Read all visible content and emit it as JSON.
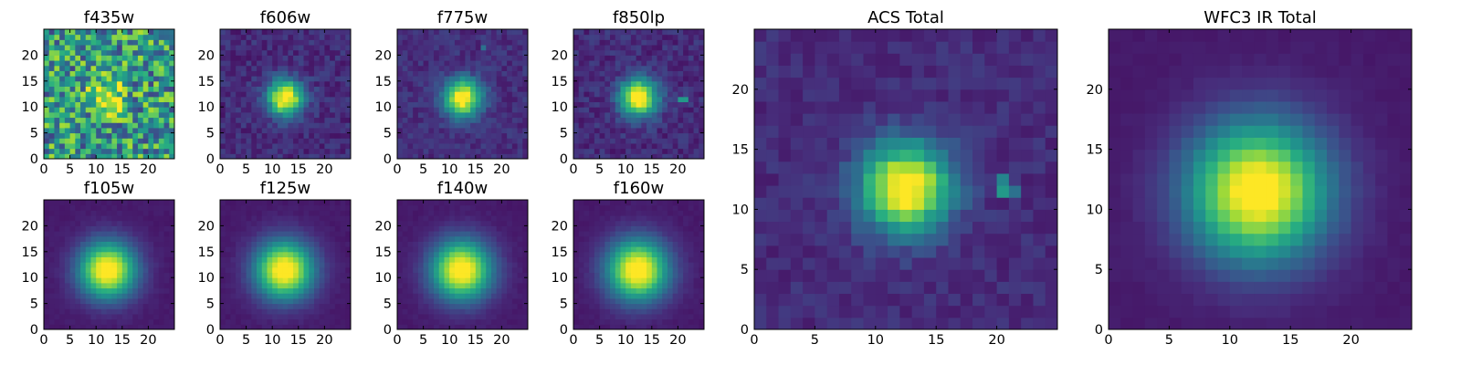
{
  "chart_data": [
    {
      "type": "heatmap",
      "title": "f435w",
      "xlim": [
        0,
        25
      ],
      "ylim": [
        0,
        25
      ],
      "xticks": [
        0,
        5,
        10,
        15,
        20
      ],
      "yticks": [
        0,
        5,
        10,
        15,
        20
      ],
      "center": [
        12.3,
        12.0
      ],
      "sigma": 2.2,
      "peak": 1.0,
      "background": 0.5,
      "noise": 0.32,
      "colormap": "viridis",
      "hot_pixels": []
    },
    {
      "type": "heatmap",
      "title": "f606w",
      "xlim": [
        0,
        25
      ],
      "ylim": [
        0,
        25
      ],
      "xticks": [
        0,
        5,
        10,
        15,
        20
      ],
      "yticks": [
        0,
        5,
        10,
        15,
        20
      ],
      "center": [
        12.5,
        11.8
      ],
      "sigma": 2.4,
      "peak": 1.0,
      "background": 0.12,
      "noise": 0.07,
      "colormap": "viridis",
      "hot_pixels": []
    },
    {
      "type": "heatmap",
      "title": "f775w",
      "xlim": [
        0,
        25
      ],
      "ylim": [
        0,
        25
      ],
      "xticks": [
        0,
        5,
        10,
        15,
        20
      ],
      "yticks": [
        0,
        5,
        10,
        15,
        20
      ],
      "center": [
        12.5,
        11.8
      ],
      "sigma": 2.5,
      "peak": 1.0,
      "background": 0.13,
      "noise": 0.06,
      "colormap": "viridis",
      "hot_pixels": [
        [
          16,
          21,
          0.35
        ]
      ]
    },
    {
      "type": "heatmap",
      "title": "f850lp",
      "xlim": [
        0,
        25
      ],
      "ylim": [
        0,
        25
      ],
      "xticks": [
        0,
        5,
        10,
        15,
        20
      ],
      "yticks": [
        0,
        5,
        10,
        15,
        20
      ],
      "center": [
        12.5,
        11.8
      ],
      "sigma": 2.5,
      "peak": 1.0,
      "background": 0.12,
      "noise": 0.07,
      "colormap": "viridis",
      "hot_pixels": [
        [
          20,
          11,
          0.5
        ],
        [
          21,
          11,
          0.5
        ]
      ]
    },
    {
      "type": "heatmap",
      "title": "f105w",
      "xlim": [
        0,
        25
      ],
      "ylim": [
        0,
        25
      ],
      "xticks": [
        0,
        5,
        10,
        15,
        20
      ],
      "yticks": [
        0,
        5,
        10,
        15,
        20
      ],
      "center": [
        12.2,
        11.5
      ],
      "sigma": 3.8,
      "peak": 1.0,
      "background": 0.07,
      "noise": 0.015,
      "colormap": "viridis",
      "hot_pixels": []
    },
    {
      "type": "heatmap",
      "title": "f125w",
      "xlim": [
        0,
        25
      ],
      "ylim": [
        0,
        25
      ],
      "xticks": [
        0,
        5,
        10,
        15,
        20
      ],
      "yticks": [
        0,
        5,
        10,
        15,
        20
      ],
      "center": [
        12.3,
        11.5
      ],
      "sigma": 3.9,
      "peak": 1.0,
      "background": 0.07,
      "noise": 0.015,
      "colormap": "viridis",
      "hot_pixels": []
    },
    {
      "type": "heatmap",
      "title": "f140w",
      "xlim": [
        0,
        25
      ],
      "ylim": [
        0,
        25
      ],
      "xticks": [
        0,
        5,
        10,
        15,
        20
      ],
      "yticks": [
        0,
        5,
        10,
        15,
        20
      ],
      "center": [
        12.3,
        11.5
      ],
      "sigma": 4.0,
      "peak": 1.0,
      "background": 0.07,
      "noise": 0.015,
      "colormap": "viridis",
      "hot_pixels": []
    },
    {
      "type": "heatmap",
      "title": "f160w",
      "xlim": [
        0,
        25
      ],
      "ylim": [
        0,
        25
      ],
      "xticks": [
        0,
        5,
        10,
        15,
        20
      ],
      "yticks": [
        0,
        5,
        10,
        15,
        20
      ],
      "center": [
        12.3,
        11.5
      ],
      "sigma": 4.1,
      "peak": 1.0,
      "background": 0.07,
      "noise": 0.015,
      "colormap": "viridis",
      "hot_pixels": []
    },
    {
      "type": "heatmap",
      "title": "ACS Total",
      "xlim": [
        0,
        25
      ],
      "ylim": [
        0,
        25
      ],
      "xticks": [
        0,
        5,
        10,
        15,
        20
      ],
      "yticks": [
        0,
        5,
        10,
        15,
        20
      ],
      "center": [
        12.5,
        11.8
      ],
      "sigma": 2.6,
      "peak": 1.0,
      "background": 0.12,
      "noise": 0.05,
      "colormap": "viridis",
      "hot_pixels": [
        [
          20,
          11,
          0.5
        ],
        [
          20,
          12,
          0.42
        ],
        [
          21,
          11,
          0.35
        ]
      ]
    },
    {
      "type": "heatmap",
      "title": "WFC3 IR Total",
      "xlim": [
        0,
        25
      ],
      "ylim": [
        0,
        25
      ],
      "xticks": [
        0,
        5,
        10,
        15,
        20
      ],
      "yticks": [
        0,
        5,
        10,
        15,
        20
      ],
      "center": [
        12.3,
        11.5
      ],
      "sigma": 4.0,
      "peak": 1.0,
      "background": 0.07,
      "noise": 0.012,
      "colormap": "viridis",
      "hot_pixels": []
    }
  ]
}
